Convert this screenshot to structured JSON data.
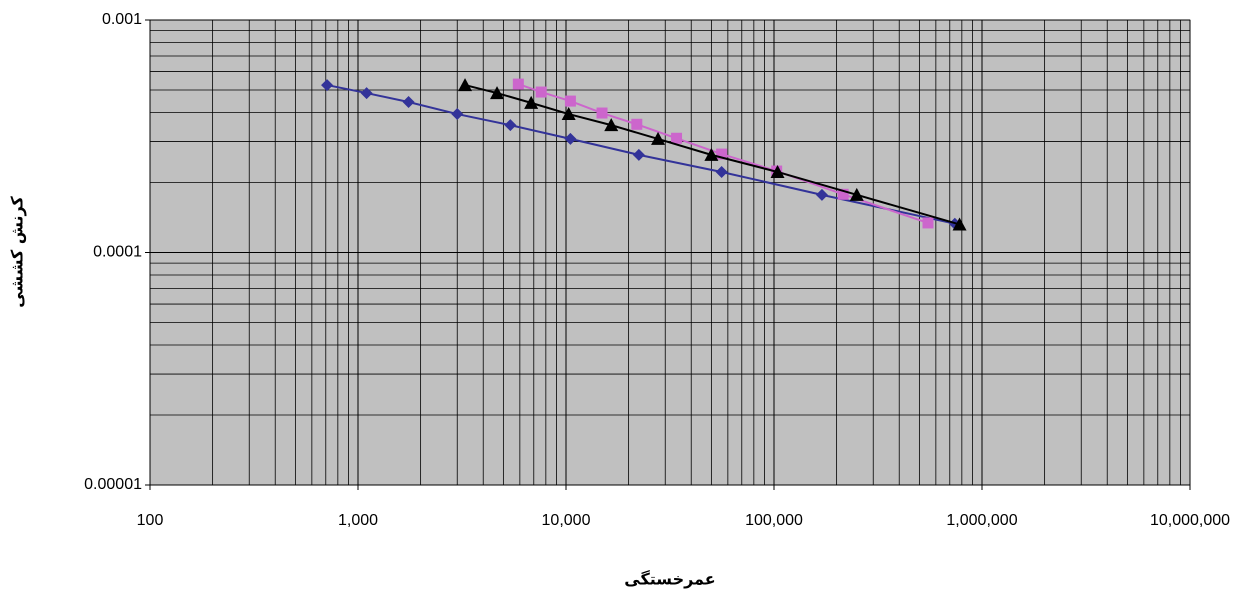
{
  "chart_data": {
    "type": "scatter-line",
    "x_label": "عمرخستگی",
    "y_label": "کرنش کششی",
    "xlog": true,
    "ylog": true,
    "grid": true,
    "minor_grid": true,
    "plot_background": "#c0c0c0",
    "xlim": [
      100,
      10000000
    ],
    "xticks": [
      100,
      {
        "value": 1000,
        "label": "1,000"
      },
      {
        "value": 10000,
        "label": "10,000"
      },
      {
        "value": 100000,
        "label": "100,000"
      },
      {
        "value": 1000000,
        "label": "1,000,000"
      },
      {
        "value": 10000000,
        "label": "10,000,000"
      }
    ],
    "ylim": [
      1e-05,
      0.001
    ],
    "yticks": [
      {
        "value": 1e-05,
        "label": "0.00001"
      },
      0.0001,
      0.001
    ],
    "series": [
      {
        "color": "#333399",
        "marker": "diamond",
        "x": [
          710,
          1100,
          1750,
          3000,
          5400,
          10500,
          22400,
          56000,
          170000,
          740000
        ],
        "values": [
          0.000525,
          0.000485,
          0.000444,
          0.000394,
          0.000353,
          0.000308,
          0.000263,
          0.000222,
          0.000177,
          0.000133
        ]
      },
      {
        "color": "#cc66cc",
        "marker": "square",
        "x": [
          5900,
          7600,
          10500,
          14900,
          21900,
          34000,
          56000,
          103000,
          215000,
          550000
        ],
        "values": [
          0.00053,
          0.00049,
          0.000448,
          0.000398,
          0.000356,
          0.00031,
          0.000265,
          0.000224,
          0.000178,
          0.000134
        ]
      },
      {
        "color": "#000000",
        "marker": "triangle",
        "x": [
          3270,
          4660,
          6800,
          10300,
          16500,
          27700,
          50000,
          104000,
          250000,
          780000
        ],
        "values": [
          0.000525,
          0.000485,
          0.00044,
          0.000394,
          0.000353,
          0.000308,
          0.000263,
          0.000222,
          0.000177,
          0.000132
        ]
      }
    ]
  }
}
